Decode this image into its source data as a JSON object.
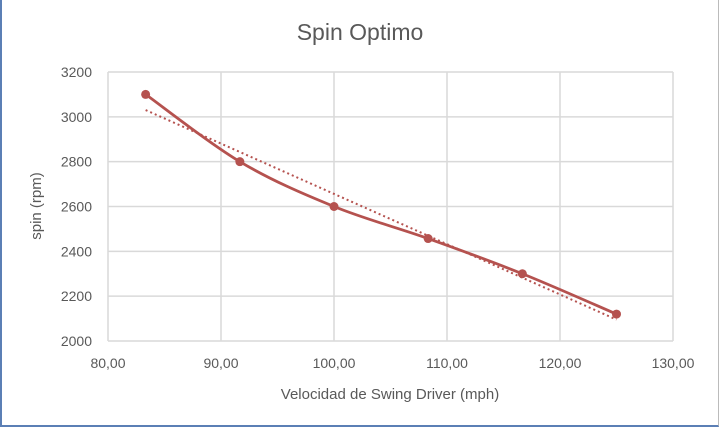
{
  "chart_data": {
    "type": "line",
    "title": "Spin Optimo",
    "xlabel": "Velocidad de Swing Driver (mph)",
    "ylabel": "spin (rpm)",
    "xlim": [
      80,
      130
    ],
    "ylim": [
      2000,
      3200
    ],
    "x_ticks": [
      "80,00",
      "90,00",
      "100,00",
      "110,00",
      "120,00",
      "130,00"
    ],
    "y_ticks": [
      "2000",
      "2200",
      "2400",
      "2600",
      "2800",
      "3000",
      "3200"
    ],
    "grid": true,
    "smooth": true,
    "trendline": "linear, dotted",
    "series": [
      {
        "color": "#b5524f",
        "x": [
          83.33,
          91.67,
          100.0,
          108.33,
          116.67,
          125.0
        ],
        "y": [
          3100,
          2800,
          2600,
          2457,
          2300,
          2120
        ]
      }
    ]
  }
}
